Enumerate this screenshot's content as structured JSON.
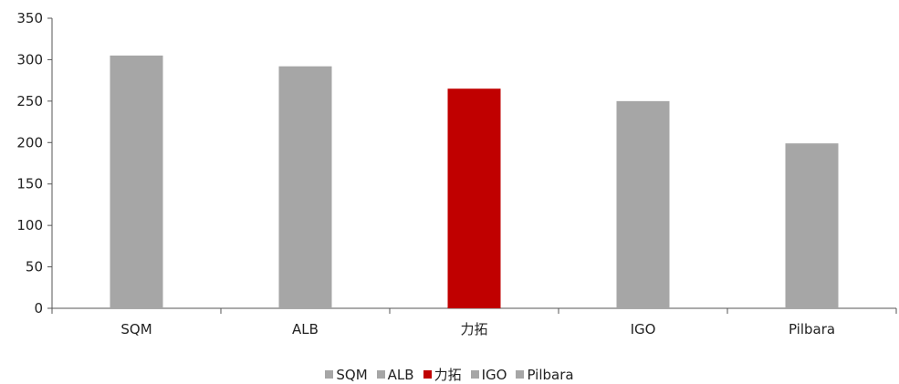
{
  "chart_data": {
    "type": "bar",
    "categories": [
      "SQM",
      "ALB",
      "力拓",
      "IGO",
      "Pilbara"
    ],
    "values": [
      305,
      292,
      265,
      250,
      199
    ],
    "colors": [
      "#a6a6a6",
      "#a6a6a6",
      "#c00000",
      "#a6a6a6",
      "#a6a6a6"
    ],
    "ylim": [
      0,
      350
    ],
    "yticks": [
      "0",
      "50",
      "100",
      "150",
      "200",
      "250",
      "300",
      "350"
    ],
    "grid": false,
    "legend_position": "bottom"
  }
}
